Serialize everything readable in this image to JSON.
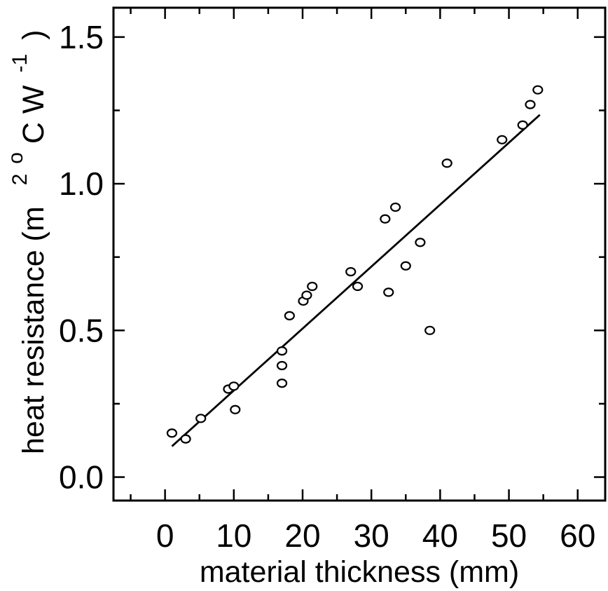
{
  "chart_data": {
    "type": "scatter",
    "xlabel": "material thickness (mm)",
    "ylabel": {
      "main": "heat resistance (m",
      "exp2": "2",
      "unit_degree": "o",
      "unit_cw": "C W",
      "exp_neg1": "-1",
      "close": ")"
    },
    "xlim": [
      -7.5,
      64
    ],
    "ylim": [
      -0.08,
      1.6
    ],
    "x_ticks": [
      0,
      10,
      20,
      30,
      40,
      50,
      60
    ],
    "y_ticks": [
      0.0,
      0.5,
      1.0,
      1.5
    ],
    "x_tick_labels": [
      "0",
      "10",
      "20",
      "30",
      "40",
      "50",
      "60"
    ],
    "y_tick_labels": [
      "0.0",
      "0.5",
      "1.0",
      "1.5"
    ],
    "grid": false,
    "series": [
      {
        "points": [
          {
            "x": 1.0,
            "y": 0.15
          },
          {
            "x": 3.0,
            "y": 0.13
          },
          {
            "x": 5.2,
            "y": 0.2
          },
          {
            "x": 9.2,
            "y": 0.3
          },
          {
            "x": 10.0,
            "y": 0.31
          },
          {
            "x": 10.2,
            "y": 0.23
          },
          {
            "x": 17.0,
            "y": 0.43
          },
          {
            "x": 17.0,
            "y": 0.38
          },
          {
            "x": 17.0,
            "y": 0.32
          },
          {
            "x": 18.1,
            "y": 0.55
          },
          {
            "x": 20.1,
            "y": 0.6
          },
          {
            "x": 20.6,
            "y": 0.62
          },
          {
            "x": 21.4,
            "y": 0.65
          },
          {
            "x": 27.0,
            "y": 0.7
          },
          {
            "x": 28.0,
            "y": 0.65
          },
          {
            "x": 32.0,
            "y": 0.88
          },
          {
            "x": 32.5,
            "y": 0.63
          },
          {
            "x": 33.5,
            "y": 0.92
          },
          {
            "x": 35.0,
            "y": 0.72
          },
          {
            "x": 37.1,
            "y": 0.8
          },
          {
            "x": 38.5,
            "y": 0.5
          },
          {
            "x": 41.0,
            "y": 1.07
          },
          {
            "x": 49.0,
            "y": 1.15
          },
          {
            "x": 52.0,
            "y": 1.2
          },
          {
            "x": 53.1,
            "y": 1.27
          },
          {
            "x": 54.2,
            "y": 1.32
          }
        ]
      }
    ],
    "fit_line": {
      "x": [
        1.0,
        54.5
      ],
      "y": [
        0.105,
        1.235
      ]
    }
  }
}
